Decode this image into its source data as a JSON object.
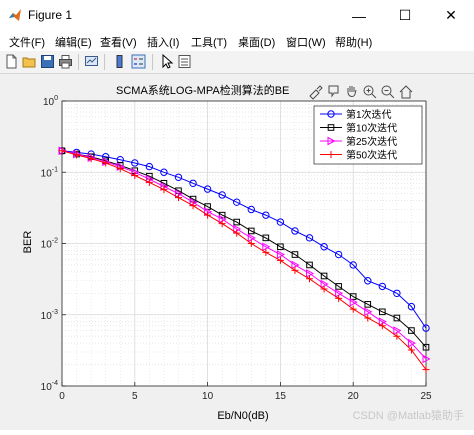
{
  "window": {
    "title": "Figure 1",
    "minimize_glyph": "—",
    "maximize_glyph": "☐",
    "close_glyph": "✕"
  },
  "menu": {
    "items": [
      "文件(F)",
      "编辑(E)",
      "查看(V)",
      "插入(I)",
      "工具(T)",
      "桌面(D)",
      "窗口(W)",
      "帮助(H)"
    ]
  },
  "toolbar": {
    "icons": [
      "new-figure-icon",
      "open-file-icon",
      "save-icon",
      "print-icon",
      "link-plot-icon",
      "colorbar-icon",
      "legend-icon",
      "pointer-icon",
      "property-inspector-icon"
    ]
  },
  "axes_toolbar": {
    "icons": [
      "brush-icon",
      "data-tip-icon",
      "pan-icon",
      "zoom-in-icon",
      "zoom-out-icon",
      "home-icon"
    ]
  },
  "watermark": "CSDN @Matlab猿助手",
  "colors": {
    "s1": "#0000ff",
    "s2": "#000000",
    "s3": "#ff00ff",
    "s4": "#ff0000",
    "grid": "#d8d8d8",
    "figure_bg": "#f0f0f0"
  },
  "chart_data": {
    "type": "line",
    "title": "SCMA系统LOG-MPA检测算法的BE",
    "xlabel": "Eb/N0(dB)",
    "ylabel": "BER",
    "xlim": [
      0,
      25
    ],
    "ylim": [
      0.0001,
      1
    ],
    "yscale": "log",
    "grid": true,
    "legend_position": "top-right",
    "x_ticks": [
      "0",
      "5",
      "10",
      "15",
      "20",
      "25"
    ],
    "x": [
      0,
      1,
      2,
      3,
      4,
      5,
      6,
      7,
      8,
      9,
      10,
      11,
      12,
      13,
      14,
      15,
      16,
      17,
      18,
      19,
      20,
      21,
      22,
      23,
      24,
      25
    ],
    "series": [
      {
        "name": "第1次迭代",
        "marker": "circle",
        "values": [
          0.2,
          0.19,
          0.18,
          0.165,
          0.15,
          0.135,
          0.12,
          0.1,
          0.085,
          0.07,
          0.058,
          0.048,
          0.038,
          0.03,
          0.025,
          0.02,
          0.015,
          0.012,
          0.009,
          0.007,
          0.005,
          0.003,
          0.0025,
          0.002,
          0.0013,
          0.00065
        ]
      },
      {
        "name": "第10次迭代",
        "marker": "square",
        "values": [
          0.2,
          0.18,
          0.165,
          0.145,
          0.125,
          0.105,
          0.088,
          0.07,
          0.055,
          0.042,
          0.033,
          0.025,
          0.02,
          0.015,
          0.012,
          0.009,
          0.007,
          0.005,
          0.0035,
          0.0025,
          0.0018,
          0.0014,
          0.0011,
          0.0009,
          0.0006,
          0.00035
        ]
      },
      {
        "name": "第25次迭代",
        "marker": "triangle-right",
        "values": [
          0.2,
          0.18,
          0.16,
          0.14,
          0.12,
          0.1,
          0.08,
          0.063,
          0.05,
          0.038,
          0.028,
          0.022,
          0.016,
          0.012,
          0.009,
          0.007,
          0.005,
          0.0038,
          0.0027,
          0.002,
          0.0015,
          0.0011,
          0.0008,
          0.0006,
          0.0004,
          0.00024
        ]
      },
      {
        "name": "第50次迭代",
        "marker": "plus",
        "values": [
          0.2,
          0.175,
          0.155,
          0.135,
          0.112,
          0.09,
          0.072,
          0.057,
          0.044,
          0.034,
          0.025,
          0.019,
          0.014,
          0.01,
          0.0075,
          0.0058,
          0.0042,
          0.0032,
          0.0023,
          0.0017,
          0.0012,
          0.0009,
          0.0007,
          0.0005,
          0.00032,
          0.00017
        ]
      }
    ]
  }
}
